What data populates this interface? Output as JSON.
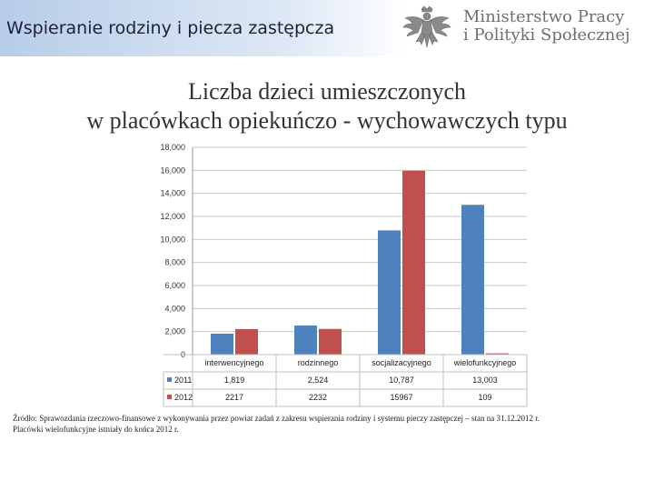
{
  "header": {
    "title": "Wspieranie rodziny i piecza zastępcza",
    "logo_line1": "Ministerstwo Pracy",
    "logo_line2": "i Polityki Społecznej",
    "logo_icon": "polish-eagle-emblem"
  },
  "chart_data": {
    "type": "bar",
    "title_line1": "Liczba dzieci umieszczonych",
    "title_line2": "w placówkach opiekuńczo - wychowawczych typu",
    "xlabel": "",
    "ylabel": "",
    "ylim": [
      0,
      18000
    ],
    "yticks": [
      "0",
      "2,000",
      "4,000",
      "6,000",
      "8,000",
      "10,000",
      "12,000",
      "14,000",
      "16,000",
      "18,000"
    ],
    "grid": true,
    "categories": [
      "interwencyjnego",
      "rodzinnego",
      "socjalizacyjnego",
      "wielofunkcyjnego"
    ],
    "series": [
      {
        "name": "2011",
        "color": "#4f81bd",
        "values": [
          1819,
          2524,
          10787,
          13003
        ],
        "labels": [
          "1,819",
          "2,524",
          "10,787",
          "13,003"
        ]
      },
      {
        "name": "2012",
        "color": "#c0504d",
        "values": [
          2217,
          2232,
          15967,
          109
        ],
        "labels": [
          "2217",
          "2232",
          "15967",
          "109"
        ]
      }
    ]
  },
  "footnote": {
    "line1": "Źródło: Sprawozdania rzeczowo-finansowe z wykonywania przez powiat zadań z zakresu wspierania rodziny i systemu pieczy zastępczej – stan na 31.12.2012 r.",
    "line2": "Placówki wielofunkcyjne istniały do końca 2012 r."
  }
}
